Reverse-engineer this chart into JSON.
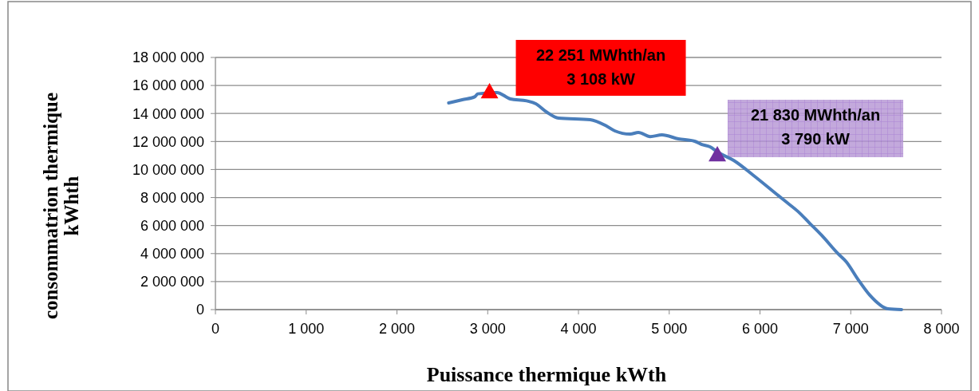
{
  "chart_data": {
    "type": "line",
    "xlabel": "Puissance thermique kWth",
    "ylabel": "consommatrion thermique\nkWhth",
    "xlim": [
      0,
      8000
    ],
    "xticks": [
      {
        "value": 0,
        "label": "0"
      },
      {
        "value": 1000,
        "label": "1 000"
      },
      {
        "value": 2000,
        "label": "2 000"
      },
      {
        "value": 3000,
        "label": "3 000"
      },
      {
        "value": 4000,
        "label": "4 000"
      },
      {
        "value": 5000,
        "label": "5 000"
      },
      {
        "value": 6000,
        "label": "6 000"
      },
      {
        "value": 7000,
        "label": "7 000"
      },
      {
        "value": 8000,
        "label": "8 000"
      }
    ],
    "ylim": [
      0,
      18000000
    ],
    "yticks": [
      {
        "value": 0,
        "label": "0"
      },
      {
        "value": 2000000,
        "label": "2 000 000"
      },
      {
        "value": 4000000,
        "label": "4 000 000"
      },
      {
        "value": 6000000,
        "label": "6 000 000"
      },
      {
        "value": 8000000,
        "label": "8 000 000"
      },
      {
        "value": 10000000,
        "label": "10 000 000"
      },
      {
        "value": 12000000,
        "label": "12 000 000"
      },
      {
        "value": 14000000,
        "label": "14 000 000"
      },
      {
        "value": 16000000,
        "label": "16 000 000"
      },
      {
        "value": 18000000,
        "label": "18 000 000"
      }
    ],
    "grid": "y",
    "series": [
      {
        "color": "#4a7ebb",
        "marker": "none",
        "line_style": "solid",
        "x": [
          2570,
          2720,
          2860,
          2890,
          3100,
          3250,
          3430,
          3530,
          3650,
          3780,
          4130,
          4310,
          4400,
          4570,
          4660,
          4790,
          4920,
          5100,
          5280,
          5360,
          5450,
          5540,
          5710,
          5930,
          6200,
          6300,
          6420,
          6550,
          6680,
          6860,
          6950,
          7080,
          7210,
          7410,
          7560
        ],
        "values": [
          14750000,
          14980000,
          15200000,
          15400000,
          15500000,
          15040000,
          14900000,
          14700000,
          14100000,
          13670000,
          13560000,
          13100000,
          12760000,
          12530000,
          12650000,
          12350000,
          12470000,
          12190000,
          12020000,
          11790000,
          11620000,
          11220000,
          10650000,
          9570000,
          8150000,
          7630000,
          7000000,
          6150000,
          5300000,
          3990000,
          3420000,
          2160000,
          1030000,
          60000,
          0
        ]
      },
      {
        "type": "scatter",
        "color": "#ff0000",
        "marker": "triangle",
        "x": [
          3020
        ],
        "values": [
          15550000
        ]
      },
      {
        "type": "scatter",
        "color": "#7030a0",
        "marker": "triangle",
        "x": [
          5530
        ],
        "values": [
          11050000
        ]
      }
    ],
    "annotations": [
      {
        "text": "22 251 MWhth/an\n3 108 kW",
        "x": 3020,
        "y": 15550000
      },
      {
        "text": "21 830 MWhth/an\n3 790 kW",
        "x": 5530,
        "y": 11050000
      }
    ]
  }
}
